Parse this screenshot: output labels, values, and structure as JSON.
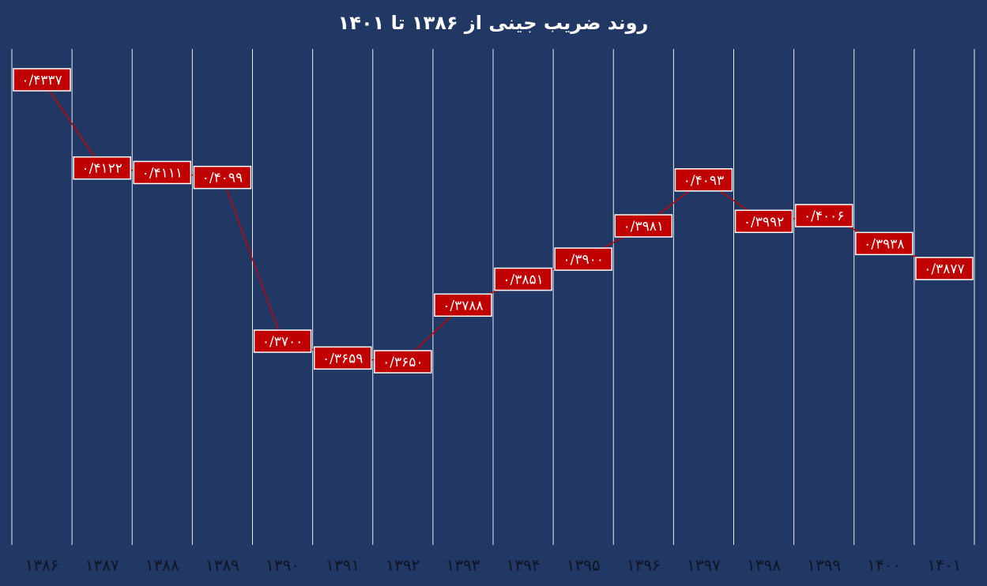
{
  "chart_data": {
    "type": "line",
    "title": "روند ضریب جینی از ۱۳۸۶ تا ۱۴۰۱",
    "categories": [
      "۱۳۸۶",
      "۱۳۸۷",
      "۱۳۸۸",
      "۱۳۸۹",
      "۱۳۹۰",
      "۱۳۹۱",
      "۱۳۹۲",
      "۱۳۹۳",
      "۱۳۹۴",
      "۱۳۹۵",
      "۱۳۹۶",
      "۱۳۹۷",
      "۱۳۹۸",
      "۱۳۹۹",
      "۱۴۰۰",
      "۱۴۰۱"
    ],
    "values": [
      0.4337,
      0.4122,
      0.4111,
      0.4099,
      0.37,
      0.3659,
      0.365,
      0.3788,
      0.3851,
      0.39,
      0.3981,
      0.4093,
      0.3992,
      0.4006,
      0.3938,
      0.3877
    ],
    "value_labels": [
      "۰/۴۳۳۷",
      "۰/۴۱۲۲",
      "۰/۴۱۱۱",
      "۰/۴۰۹۹",
      "۰/۳۷۰۰",
      "۰/۳۶۵۹",
      "۰/۳۶۵۰",
      "۰/۳۷۸۸",
      "۰/۳۸۵۱",
      "۰/۳۹۰۰",
      "۰/۳۹۸۱",
      "۰/۴۰۹۳",
      "۰/۳۹۹۲",
      "۰/۴۰۰۶",
      "۰/۳۹۳۸",
      "۰/۳۸۷۷"
    ],
    "color": "#c00000",
    "grid": true
  }
}
